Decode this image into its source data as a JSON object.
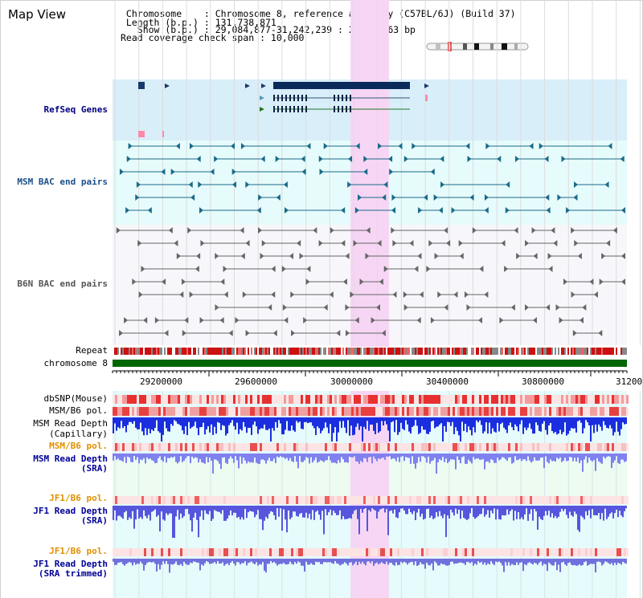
{
  "view_title": "Map View",
  "header": {
    "chromosome_line": " Chromosome    : Chromosome 8, reference assembly (C57BL/6J) (Build 37)",
    "length_line": " Length (b.p.) : 131,738,871",
    "show_line": "   Show (b.p.) : 29,084,877-31,242,239 : 2,157,363 bp",
    "coverage_line": "Read coverage check span : 10,000"
  },
  "tracks": {
    "refseq_label": "RefSeq Genes",
    "msm_bac_label": "MSM BAC end pairs",
    "b6n_bac_label": "B6N BAC end pairs",
    "repeat_label": "Repeat",
    "chromosome_label": "chromosome 8",
    "dbsnp_label": "dbSNP(Mouse)",
    "msm_b6_pol_label": "MSM/B6 pol.",
    "msm_read_depth_cap_line1": "MSM Read Depth",
    "msm_read_depth_cap_line2": "(Capillary)",
    "msm_b6_pol2_label": "MSM/B6 pol.",
    "msm_read_depth_sra_line1": "MSM Read Depth",
    "msm_read_depth_sra_line2": "(SRA)",
    "jf1_b6_pol_label": "JF1/B6 pol.",
    "jf1_read_depth_sra_line1": "JF1 Read Depth",
    "jf1_read_depth_sra_line2": "(SRA)",
    "jf1_b6_pol2_label": "JF1/B6 pol.",
    "jf1_read_depth_trim_line1": "JF1 Read Depth",
    "jf1_read_depth_trim_line2": "(SRA trimmed)"
  },
  "axis_ticks": [
    "29200000",
    "29600000",
    "30000000",
    "30400000",
    "30800000",
    "31200"
  ],
  "colors": {
    "refseq_label": "#000080",
    "msm_label": "#1a4f8a",
    "b6n_label": "#555555",
    "orange_label": "#e09000",
    "blue_label": "#000099",
    "highlight": "#f6d6f4",
    "refseq_bg": "#d8eef9",
    "msm_bg": "#e6fbfb",
    "b6n_bg": "#f7f7fb",
    "chrom_band": "#006600"
  }
}
